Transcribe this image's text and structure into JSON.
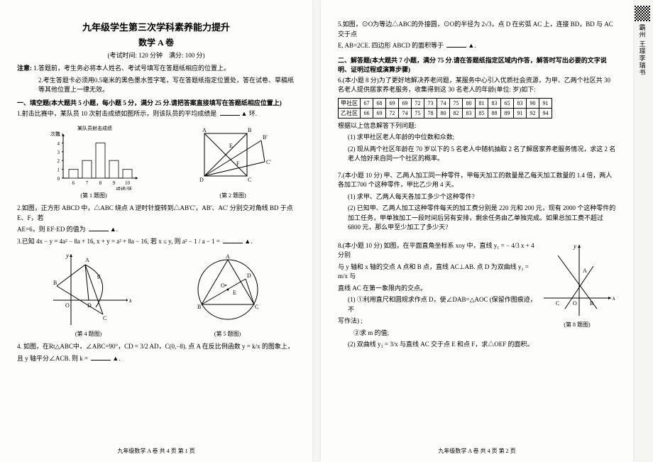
{
  "header": {
    "title_line1": "九年级学生第三次学科素养能力提升",
    "title_line2": "数学 A 卷",
    "exam_info": "(考试时间: 120 分钟　满分: 100 分)"
  },
  "notice": {
    "heading": "注意:",
    "items": [
      "1.答题前，考生务必将本人姓名、考试号填写在答题纸相应的位置上。",
      "2.考生答题卡必须用0.5毫米的黑色墨水签字笔，写在答题纸指定位置处，答在试卷、草稿纸等其他位置上一律无效。"
    ]
  },
  "section1": {
    "heading": "一、填空题(本大题共 5 小题，每小题 5 分，满分 25 分.请把答案直接填写在答题纸相应位置上)",
    "q1": "1.射击比赛中，某队员 10 次射击成绩如图所示，则该队员的平均成绩是",
    "q1_unit": "环.",
    "q2_a": "2.如图，正方形 ABCD 中，△ABC 绕点 A 逆时针旋转到△AB'C'，AB'、AC' 分别交对角线 BD 于点 E、F，若",
    "q2_b": "AE=6，则 EF·ED 的值为",
    "q3_a": "3.已知 4x − y = 4a² − 8a + 16, x + y = a² + 8a − 16, 若 x ≤ y, 则",
    "q3_expr": "a² − 1 / a − 1 =",
    "q4_a": "4. 如图，在Rt△ABC中，∠ABC=90°，CD = 3/2 AD，C(0,−8). 点 A 在反比例函数 y = k/x 的图象上，",
    "q4_b": "且 y 轴平分∠ACB. 则 k =",
    "fig1_cap": "(第 1 题图)",
    "fig2_cap": "(第 2 题图)",
    "fig4_cap": "(第 4 题图)",
    "fig5_cap": "(第 5 题图)",
    "bar_chart": {
      "xlabel": "成绩/环",
      "ylabel": "次数",
      "title": "某队员射击成绩",
      "x_ticks": [
        6,
        7,
        8,
        9,
        10
      ],
      "y_ticks": [
        0,
        1,
        2,
        3,
        4,
        5
      ],
      "bars": [
        1,
        2,
        4,
        2,
        1
      ],
      "bar_color": "#333333",
      "axis_color": "#000000",
      "bg": "#fdfdfb"
    }
  },
  "page1_footer": "九年级数学 A 卷 共 4 页 第 1 页",
  "page2": {
    "q5_a": "5.如图，⊙O为等边△ABC的外接圆，⊙O的半径为 2√3，点 D 在劣弧 AC 上，连接 BD，BD 与 AC 交于点",
    "q5_b": "E, AB=2CE. 四边形 ABCD 的面积等于",
    "section2": "二、解答题(本大题共 7 小题，满分 75 分.请在答题纸指定区域内作答，解答时写出必要的文字说明、证明过程或演算步骤)",
    "q6_a": "6.(本小题 8 分)为了更好地解决养老问题，某服务中心引入优质社会资源，为甲、乙两个社区共 30 名老人提供居家养老服务，收集得到这 30 名老人的年龄(单位: 岁)如下:",
    "q6_b": "根据以上信息解答下列问题:",
    "q6_1": "(1) 求甲社区老人年龄的中位数和众数;",
    "q6_2": "(2) 现从两个社区年龄在 70 岁以下的 5 名老人中随机抽取 2 名了解居家养老服务情况，求这 2 名老人恰好来自同一个社区的概率。",
    "table": {
      "row_labels": [
        "甲社区",
        "乙社区"
      ],
      "data": [
        [
          67,
          68,
          69,
          69,
          72,
          73,
          74,
          75,
          80,
          81,
          83,
          65,
          83,
          90,
          91
        ],
        [
          66,
          69,
          72,
          74,
          75,
          78,
          80,
          82,
          83,
          85,
          88,
          89,
          91,
          92,
          94
        ]
      ]
    },
    "q7_a": "7.(本小题 10 分) 甲、乙两人加工同一种零件，甲每天加工的数量是乙每天加工数量的 1.4 倍，两人各加工700 个这种零件，甲比乙少用 4 天。",
    "q7_1": "(1) 求甲、乙两人每天各加工多少个这种零件?",
    "q7_2": "(2) 已知甲、乙两人加工这种零件每天的加工费分别是 220 元和 200 元，现有 2000 个这种零件的加工任务，甲单独加工一段时间后另有安排，剩余任务由乙单独完成。如果总加工费不超过 6800 元，那么甲至少加工了多少天?",
    "q8_a": "8.(本小题 10 分) 如图，在平面直角坐标系 xoy 中，直线 y₁ = − 4/3 x + 4 分别",
    "q8_b": "与 y 轴和 x 轴的交点 A 点和 B 点，直线 AC⊥AB. 点 D 为双曲线 y₂ = m/x 与",
    "q8_c": "直线 AC 在第一象限内的交点。",
    "q8_1a": "(1) ①利用直尺和圆规求作点 D，使∠DAB=△AOC (保留作图痕迹，不",
    "q8_1b": "写作法) ;",
    "q8_1c": "②求 m 的值;",
    "q8_2": "(2) 双曲线 y₃ = 3/x 与直线 AC 交于点 E 和点 F，求△OEF 的面积。",
    "fig8_cap": "(第 8 题图)"
  },
  "page2_footer": "九年级数学 A 卷 共 4 页 第 2 页",
  "sidebar": "霸州 王璟李瑞书"
}
